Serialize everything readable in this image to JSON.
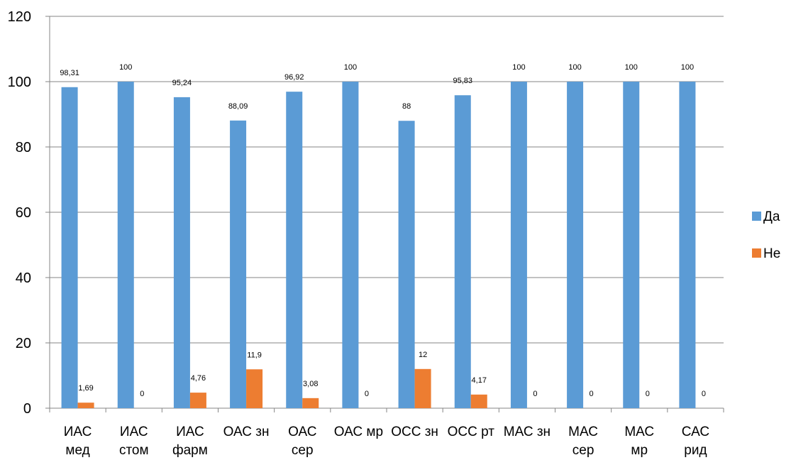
{
  "chart_data": {
    "type": "bar",
    "categories": [
      [
        "ИАС",
        "мед"
      ],
      [
        "ИАС",
        "стом"
      ],
      [
        "ИАС",
        "фарм"
      ],
      [
        "ОАС зн"
      ],
      [
        "ОАС",
        "сер"
      ],
      [
        "ОАС мр"
      ],
      [
        "ОСС зн"
      ],
      [
        "ОСС рт"
      ],
      [
        "МАС зн"
      ],
      [
        "МАС",
        "сер"
      ],
      [
        "МАС",
        "мр"
      ],
      [
        "САС",
        "рид"
      ]
    ],
    "series": [
      {
        "name": "Да",
        "color": "#5B9BD5",
        "values": [
          98.31,
          100,
          95.24,
          88.09,
          96.92,
          100,
          88,
          95.83,
          100,
          100,
          100,
          100
        ],
        "labels": [
          "98,31",
          "100",
          "95,24",
          "88,09",
          "96,92",
          "100",
          "88",
          "95,83",
          "100",
          "100",
          "100",
          "100"
        ]
      },
      {
        "name": "Не",
        "color": "#ED7D31",
        "values": [
          1.69,
          0,
          4.76,
          11.9,
          3.08,
          0,
          12,
          4.17,
          0,
          0,
          0,
          0
        ],
        "labels": [
          "1,69",
          "0",
          "4,76",
          "11,9",
          "3,08",
          "0",
          "12",
          "4,17",
          "0",
          "0",
          "0",
          "0"
        ]
      }
    ],
    "ylim": [
      0,
      120
    ],
    "yticks": [
      0,
      20,
      40,
      60,
      80,
      100,
      120
    ],
    "grid": true,
    "legend_position": "right"
  }
}
